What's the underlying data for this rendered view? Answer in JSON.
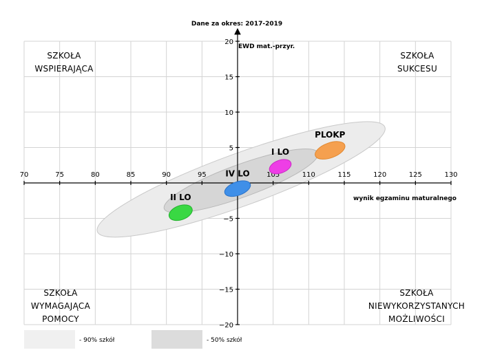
{
  "chart_data": {
    "type": "scatter",
    "title": "Dane za okres: 2017-2019",
    "xlabel": "wynik egzaminu maturalnego",
    "ylabel": "EWD mat.-przyr.",
    "xlim": [
      70,
      130
    ],
    "ylim": [
      -20,
      20
    ],
    "x_ticks": [
      70,
      75,
      80,
      85,
      90,
      95,
      100,
      105,
      110,
      115,
      120,
      125,
      130
    ],
    "y_ticks": [
      -20,
      -15,
      -10,
      -5,
      5,
      10,
      15,
      20
    ],
    "x_tick_labels": [
      "70",
      "75",
      "80",
      "85",
      "90",
      "95",
      "",
      "105",
      "110",
      "115",
      "120",
      "125",
      "130"
    ],
    "y_tick_labels": [
      "−20",
      "−15",
      "−10",
      "−5",
      "5",
      "10",
      "15",
      "20"
    ],
    "grid": true,
    "quadrants": [
      {
        "position": "top-left",
        "lines": [
          "SZKOŁA",
          "WSPIERAJĄCA"
        ]
      },
      {
        "position": "top-right",
        "lines": [
          "SZKOŁA",
          "SUKCESU"
        ]
      },
      {
        "position": "bottom-left",
        "lines": [
          "SZKOŁA",
          "WYMAGAJĄCA",
          "POMOCY"
        ]
      },
      {
        "position": "bottom-right",
        "lines": [
          "SZKOŁA",
          "NIEWYKORZYSTANYCH",
          "MOŻLIWOŚCI"
        ]
      }
    ],
    "regions": [
      {
        "name": "90% szkół",
        "cx": 100.5,
        "cy": 0.5,
        "rx": 21.5,
        "ry": 3.7,
        "angle_deg": -20,
        "color": "#ececec",
        "stroke": "#c8c8c8"
      },
      {
        "name": "50% szkół",
        "cx": 100.5,
        "cy": 0.3,
        "rx": 11.5,
        "ry": 2.3,
        "angle_deg": -20,
        "color": "#d6d6d6",
        "stroke": "#b8b8b8"
      }
    ],
    "series": [
      {
        "name": "PLOKP",
        "x": 113,
        "y": 4.6,
        "rx": 2.2,
        "ry": 1.05,
        "angle_deg": -20,
        "color": "#f5a04f",
        "stroke": "#e0872f"
      },
      {
        "name": "I LO",
        "x": 106,
        "y": 2.3,
        "rx": 1.6,
        "ry": 0.9,
        "angle_deg": -20,
        "color": "#ee3ee6",
        "stroke": "#c92cc2"
      },
      {
        "name": "IV LO",
        "x": 100,
        "y": -0.8,
        "rx": 1.9,
        "ry": 0.95,
        "angle_deg": -20,
        "color": "#3f8fe8",
        "stroke": "#2a72c8"
      },
      {
        "name": "II LO",
        "x": 92,
        "y": -4.2,
        "rx": 1.7,
        "ry": 1.0,
        "angle_deg": -20,
        "color": "#39d843",
        "stroke": "#23b12d"
      }
    ],
    "legend": {
      "position": "bottom",
      "items": [
        {
          "label": "- 90% szkół",
          "color": "#ececec"
        },
        {
          "label": "- 50% szkół",
          "color": "#dcdcdc"
        }
      ]
    }
  }
}
